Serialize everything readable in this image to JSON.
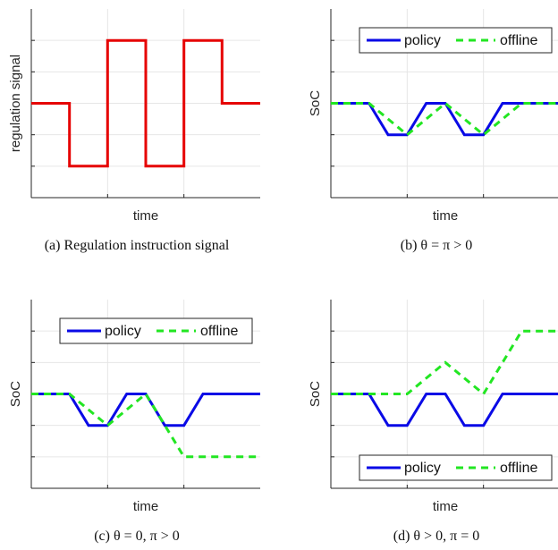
{
  "colors": {
    "policy": "#0a0ae6",
    "offline": "#22e622",
    "signal": "#e60000",
    "grid": "#e6e6e6",
    "axis": "#262626"
  },
  "chart_data": [
    {
      "type": "line",
      "xlabel": "time",
      "ylabel": "regulation signal",
      "caption": "(a) Regulation instruction signal",
      "xlim": [
        0,
        6
      ],
      "ylim": [
        -3,
        3
      ],
      "grid": true,
      "legend": null,
      "series": [
        {
          "key": "signal",
          "x": [
            0,
            1,
            1,
            2,
            2,
            3,
            3,
            4,
            4,
            5,
            5,
            6
          ],
          "y": [
            0,
            0,
            -2,
            -2,
            2,
            2,
            -2,
            -2,
            2,
            2,
            0,
            0
          ]
        }
      ]
    },
    {
      "type": "line",
      "xlabel": "time",
      "ylabel": "SoC",
      "caption": "(b) θ = π > 0",
      "xlim": [
        0,
        6
      ],
      "ylim": [
        -3,
        3
      ],
      "grid": true,
      "legend": {
        "position": "top-right",
        "entries": [
          "policy",
          "offline"
        ]
      },
      "series": [
        {
          "key": "policy",
          "name": "policy",
          "x": [
            0,
            1,
            1.5,
            2,
            2.5,
            3,
            3.5,
            4,
            4.5,
            6
          ],
          "y": [
            0,
            0,
            -1,
            -1,
            0,
            0,
            -1,
            -1,
            0,
            0
          ]
        },
        {
          "key": "offline",
          "name": "offline",
          "x": [
            0,
            1,
            2,
            3,
            4,
            5,
            6
          ],
          "y": [
            0,
            0,
            -1,
            0,
            -1,
            0,
            0
          ]
        }
      ]
    },
    {
      "type": "line",
      "xlabel": "time",
      "ylabel": "SoC",
      "caption": "(c) θ = 0, π > 0",
      "xlim": [
        0,
        6
      ],
      "ylim": [
        -3,
        3
      ],
      "grid": true,
      "legend": {
        "position": "top-right",
        "entries": [
          "policy",
          "offline"
        ]
      },
      "series": [
        {
          "key": "policy",
          "name": "policy",
          "x": [
            0,
            1,
            1.5,
            2,
            2.5,
            3,
            3.5,
            4,
            4.5,
            6
          ],
          "y": [
            0,
            0,
            -1,
            -1,
            0,
            0,
            -1,
            -1,
            0,
            0
          ]
        },
        {
          "key": "offline",
          "name": "offline",
          "x": [
            0,
            1,
            2,
            3,
            4,
            6
          ],
          "y": [
            0,
            0,
            -1,
            0,
            -2,
            -2
          ]
        }
      ]
    },
    {
      "type": "line",
      "xlabel": "time",
      "ylabel": "SoC",
      "caption": "(d) θ > 0, π = 0",
      "xlim": [
        0,
        6
      ],
      "ylim": [
        -3,
        3
      ],
      "grid": true,
      "legend": {
        "position": "bottom-right",
        "entries": [
          "policy",
          "offline"
        ]
      },
      "series": [
        {
          "key": "policy",
          "name": "policy",
          "x": [
            0,
            1,
            1.5,
            2,
            2.5,
            3,
            3.5,
            4,
            4.5,
            6
          ],
          "y": [
            0,
            0,
            -1,
            -1,
            0,
            0,
            -1,
            -1,
            0,
            0
          ]
        },
        {
          "key": "offline",
          "name": "offline",
          "x": [
            0,
            1,
            2,
            3,
            4,
            5,
            6
          ],
          "y": [
            0,
            0,
            0,
            1,
            0,
            2,
            2
          ]
        }
      ]
    }
  ]
}
